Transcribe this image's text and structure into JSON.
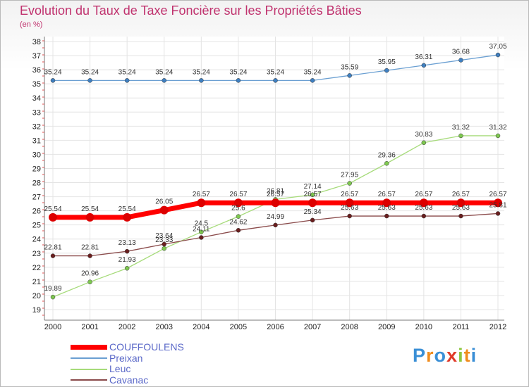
{
  "title": "Evolution du Taux de Taxe Foncière sur les Propriétés Bâties",
  "subtitle": "(en %)",
  "logo": {
    "letters": [
      "P",
      "r",
      "o",
      "x",
      "i",
      "t",
      "i"
    ],
    "colors": [
      "#3a8fd6",
      "#f08c1c",
      "#3a8fd6",
      "#e03a2a",
      "#8cc63e",
      "#f08c1c",
      "#3a8fd6"
    ]
  },
  "chart_data": {
    "type": "line",
    "title": "Evolution du Taux de Taxe Foncière sur les Propriétés Bâties",
    "ylabel": "(en %)",
    "xlabel": "",
    "ylim": [
      19,
      38
    ],
    "categories": [
      "2000",
      "2001",
      "2002",
      "2003",
      "2004",
      "2005",
      "2006",
      "2007",
      "2008",
      "2009",
      "2010",
      "2011",
      "2012"
    ],
    "series": [
      {
        "name": "COUFFOULENS",
        "color": "#ff0000",
        "marker": "#dd0000",
        "width": 7,
        "values": [
          25.54,
          25.54,
          25.54,
          26.05,
          26.57,
          26.57,
          26.57,
          26.57,
          26.57,
          26.57,
          26.57,
          26.57,
          26.57
        ],
        "labels": [
          "25.54",
          "25.54",
          "25.54",
          "26.05",
          "26.57",
          "26.57",
          "26.57",
          "26.57",
          "26.57",
          "26.57",
          "26.57",
          "26.57",
          "26.57"
        ]
      },
      {
        "name": "Preixan",
        "color": "#6a9fd2",
        "marker": "#3f7fc0",
        "width": 1.3,
        "values": [
          35.24,
          35.24,
          35.24,
          35.24,
          35.24,
          35.24,
          35.24,
          35.24,
          35.59,
          35.95,
          36.31,
          36.68,
          37.05
        ],
        "labels": [
          "35.24",
          "35.24",
          "35.24",
          "35.24",
          "35.24",
          "35.24",
          "35.24",
          "35.24",
          "35.59",
          "35.95",
          "36.31",
          "36.68",
          "37.05"
        ]
      },
      {
        "name": "Leuc",
        "color": "#a6db7a",
        "marker": "#7ec850",
        "width": 1.3,
        "values": [
          19.89,
          20.96,
          21.93,
          23.33,
          24.5,
          25.6,
          26.81,
          27.14,
          27.95,
          29.36,
          30.83,
          31.32,
          31.32
        ],
        "labels": [
          "19.89",
          "20.96",
          "21.93",
          "23.33",
          "24.5",
          "25.6",
          "26.81",
          "27.14",
          "27.95",
          "29.36",
          "30.83",
          "31.32",
          "31.32"
        ]
      },
      {
        "name": "Cavanac",
        "color": "#8a4a4a",
        "marker": "#6a1e1e",
        "width": 1.3,
        "values": [
          22.81,
          22.81,
          23.13,
          23.64,
          24.11,
          24.62,
          24.99,
          25.34,
          25.63,
          25.63,
          25.63,
          25.63,
          25.81
        ],
        "labels": [
          "22.81",
          "22.81",
          "23.13",
          "23.64",
          "24.11",
          "24.62",
          "24.99",
          "25.34",
          "25.63",
          "25.63",
          "25.63",
          "25.63",
          "25.81"
        ]
      }
    ],
    "yticks": [
      "19",
      "20",
      "21",
      "22",
      "23",
      "24",
      "25",
      "26",
      "27",
      "28",
      "29",
      "30",
      "31",
      "32",
      "33",
      "34",
      "35",
      "36",
      "37",
      "38"
    ],
    "grid": true,
    "legend": "bottom-left"
  }
}
